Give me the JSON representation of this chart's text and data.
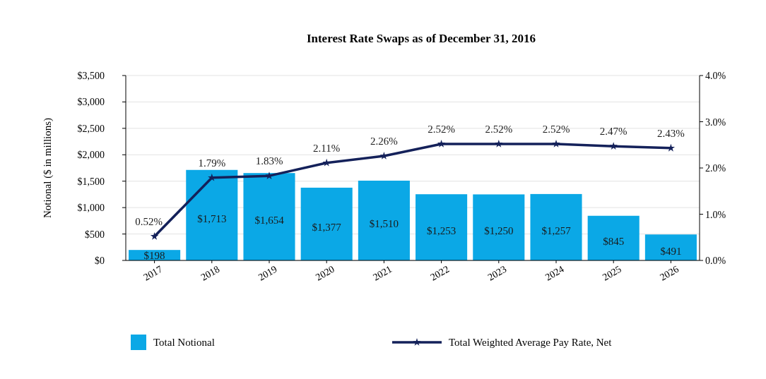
{
  "chart_data": {
    "type": "bar",
    "title": "Interest Rate Swaps as of December 31, 2016",
    "ylabel": "Notional ($ in millions)",
    "categories": [
      "2017",
      "2018",
      "2019",
      "2020",
      "2021",
      "2022",
      "2023",
      "2024",
      "2025",
      "2026"
    ],
    "series": [
      {
        "name": "Total Notional",
        "color": "#0ba8e6",
        "values": [
          198,
          1713,
          1654,
          1377,
          1510,
          1253,
          1250,
          1257,
          845,
          491
        ],
        "value_labels": [
          "$198",
          "$1,713",
          "$1,654",
          "$1,377",
          "$1,510",
          "$1,253",
          "$1,250",
          "$1,257",
          "$845",
          "$491"
        ]
      },
      {
        "name": "Total Weighted Average Pay Rate, Net",
        "type": "line",
        "axis": "y2",
        "color": "#14215a",
        "marker": "star",
        "values": [
          0.52,
          1.79,
          1.83,
          2.11,
          2.26,
          2.52,
          2.52,
          2.52,
          2.47,
          2.43
        ],
        "value_labels": [
          "0.52%",
          "1.79%",
          "1.83%",
          "2.11%",
          "2.26%",
          "2.52%",
          "2.52%",
          "2.52%",
          "2.47%",
          "2.43%"
        ]
      }
    ],
    "ylim": [
      0,
      3500
    ],
    "yticks": [
      {
        "value": 0,
        "label": "$0"
      },
      {
        "value": 500,
        "label": "$500"
      },
      {
        "value": 1000,
        "label": "$1,000"
      },
      {
        "value": 1500,
        "label": "$1,500"
      },
      {
        "value": 2000,
        "label": "$2,000"
      },
      {
        "value": 2500,
        "label": "$2,500"
      },
      {
        "value": 3000,
        "label": "$3,000"
      },
      {
        "value": 3500,
        "label": "$3,500"
      }
    ],
    "y2lim": [
      0,
      4
    ],
    "y2ticks": [
      {
        "value": 0,
        "label": "0.0%"
      },
      {
        "value": 1,
        "label": "1.0%"
      },
      {
        "value": 2,
        "label": "2.0%"
      },
      {
        "value": 3,
        "label": "3.0%"
      },
      {
        "value": 4,
        "label": "4.0%"
      }
    ],
    "grid": "y",
    "legend": "bottom"
  }
}
